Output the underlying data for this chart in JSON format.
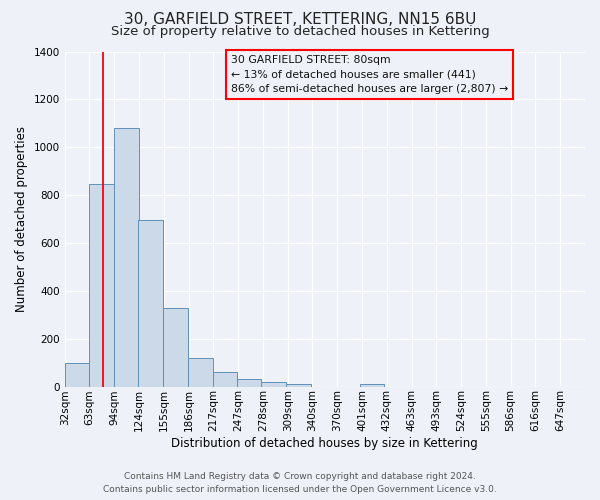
{
  "title": "30, GARFIELD STREET, KETTERING, NN15 6BU",
  "subtitle": "Size of property relative to detached houses in Kettering",
  "xlabel": "Distribution of detached houses by size in Kettering",
  "ylabel": "Number of detached properties",
  "bar_left_edges": [
    32,
    63,
    94,
    124,
    155,
    186,
    217,
    247,
    278,
    309,
    340,
    370,
    401,
    432,
    463,
    493,
    524,
    555,
    586,
    616
  ],
  "bar_heights": [
    100,
    845,
    1080,
    695,
    330,
    120,
    60,
    30,
    18,
    10,
    0,
    0,
    10,
    0,
    0,
    0,
    0,
    0,
    0,
    0
  ],
  "bin_width": 31,
  "bar_color": "#ccd9e8",
  "bar_edge_color": "#6090b8",
  "red_line_x": 80,
  "ylim": [
    0,
    1400
  ],
  "yticks": [
    0,
    200,
    400,
    600,
    800,
    1000,
    1200,
    1400
  ],
  "xtick_labels": [
    "32sqm",
    "63sqm",
    "94sqm",
    "124sqm",
    "155sqm",
    "186sqm",
    "217sqm",
    "247sqm",
    "278sqm",
    "309sqm",
    "340sqm",
    "370sqm",
    "401sqm",
    "432sqm",
    "463sqm",
    "493sqm",
    "524sqm",
    "555sqm",
    "586sqm",
    "616sqm",
    "647sqm"
  ],
  "annotation_title": "30 GARFIELD STREET: 80sqm",
  "annotation_line1": "← 13% of detached houses are smaller (441)",
  "annotation_line2": "86% of semi-detached houses are larger (2,807) →",
  "footer_line1": "Contains HM Land Registry data © Crown copyright and database right 2024.",
  "footer_line2": "Contains public sector information licensed under the Open Government Licence v3.0.",
  "background_color": "#eef2f8",
  "grid_color": "#ffffff",
  "title_fontsize": 11,
  "subtitle_fontsize": 9.5,
  "axis_label_fontsize": 8.5,
  "tick_fontsize": 7.5,
  "footer_fontsize": 6.5
}
